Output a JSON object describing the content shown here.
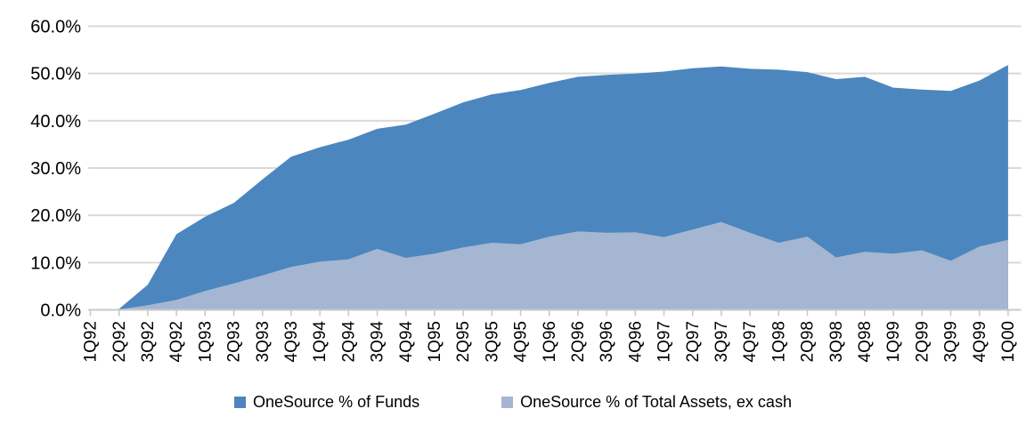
{
  "chart_data": {
    "type": "area",
    "title": "",
    "xlabel": "",
    "ylabel": "",
    "categories": [
      "1Q92",
      "2Q92",
      "3Q92",
      "4Q92",
      "1Q93",
      "2Q93",
      "3Q93",
      "4Q93",
      "1Q94",
      "2Q94",
      "3Q94",
      "4Q94",
      "1Q95",
      "2Q95",
      "3Q95",
      "4Q95",
      "1Q96",
      "2Q96",
      "3Q96",
      "4Q96",
      "1Q97",
      "2Q97",
      "3Q97",
      "4Q97",
      "1Q98",
      "2Q98",
      "3Q98",
      "4Q98",
      "1Q99",
      "2Q99",
      "3Q99",
      "4Q99",
      "1Q00"
    ],
    "series": [
      {
        "name": "OneSource % of Funds",
        "color": "#4C86BE",
        "values": [
          0.0,
          0.2,
          5.3,
          16.0,
          19.7,
          22.6,
          27.6,
          32.4,
          34.4,
          36.0,
          38.3,
          39.2,
          41.5,
          43.9,
          45.6,
          46.5,
          48.0,
          49.3,
          49.7,
          50.0,
          50.4,
          51.1,
          51.5,
          51.0,
          50.8,
          50.3,
          48.8,
          49.3,
          47.0,
          46.6,
          46.3,
          48.5,
          51.8
        ]
      },
      {
        "name": "OneSource % of Total Assets, ex cash",
        "color": "#A4B6D2",
        "values": [
          0.0,
          0.1,
          1.0,
          2.1,
          4.0,
          5.6,
          7.3,
          9.1,
          10.2,
          10.7,
          12.9,
          11.0,
          11.9,
          13.2,
          14.2,
          13.9,
          15.5,
          16.6,
          16.3,
          16.4,
          15.4,
          17.0,
          18.6,
          16.3,
          14.2,
          15.5,
          11.1,
          12.3,
          11.9,
          12.6,
          10.4,
          13.4,
          14.8
        ]
      }
    ],
    "ylim": [
      0,
      60
    ],
    "ytick_labels": [
      "0.0%",
      "10.0%",
      "20.0%",
      "30.0%",
      "40.0%",
      "50.0%",
      "60.0%"
    ],
    "grid": true,
    "legend_position": "bottom",
    "grid_color": "#D9D9D9",
    "axis_color": "#C8C8C8",
    "text_color": "#000000"
  }
}
